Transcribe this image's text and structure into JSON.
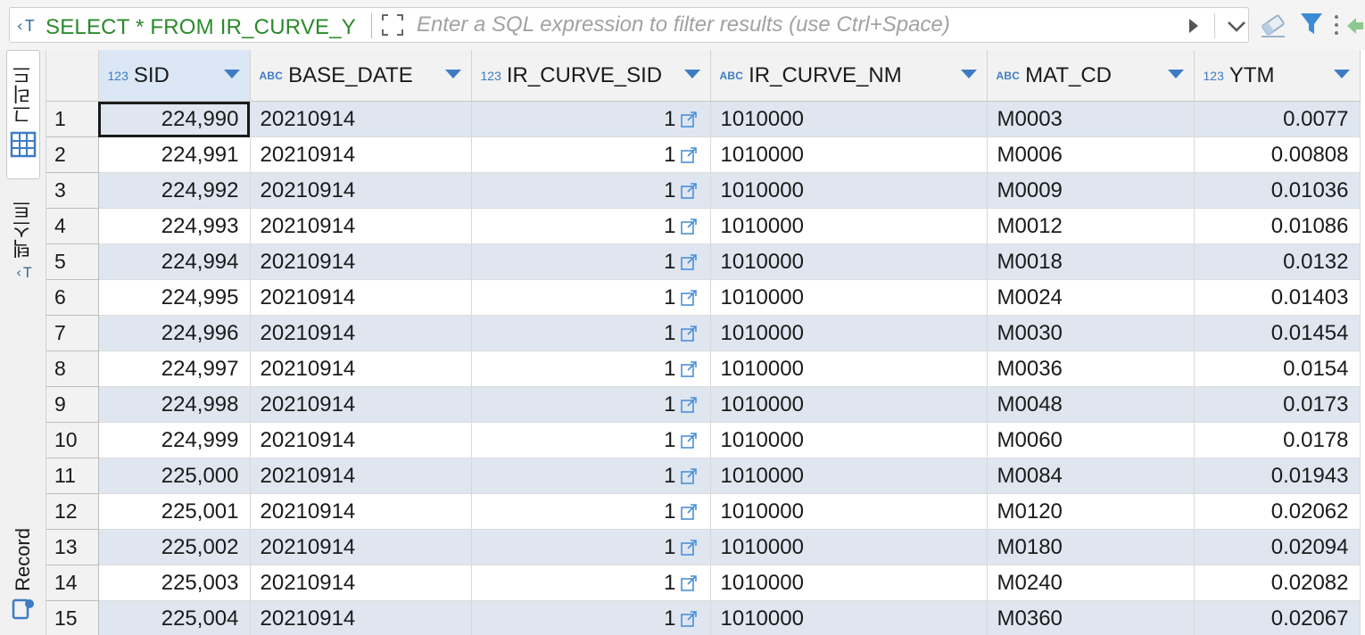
{
  "filter": {
    "query_text": "SELECT * FROM IR_CURVE_Y",
    "placeholder": "Enter a SQL expression to filter results (use Ctrl+Space)",
    "value": ""
  },
  "side_tabs": {
    "grid_label": "그리드",
    "text_label": "텍스트",
    "record_label": "Record"
  },
  "columns": [
    {
      "type": "123",
      "name": "SID"
    },
    {
      "type": "ABC",
      "name": "BASE_DATE"
    },
    {
      "type": "123",
      "name": "IR_CURVE_SID"
    },
    {
      "type": "ABC",
      "name": "IR_CURVE_NM"
    },
    {
      "type": "ABC",
      "name": "MAT_CD"
    },
    {
      "type": "123",
      "name": "YTM"
    }
  ],
  "rows": [
    {
      "n": "1",
      "sid": "224,990",
      "base_date": "20210914",
      "ir_curve_sid": "1",
      "ir_curve_nm": "1010000",
      "mat_cd": "M0003",
      "ytm": "0.0077"
    },
    {
      "n": "2",
      "sid": "224,991",
      "base_date": "20210914",
      "ir_curve_sid": "1",
      "ir_curve_nm": "1010000",
      "mat_cd": "M0006",
      "ytm": "0.00808"
    },
    {
      "n": "3",
      "sid": "224,992",
      "base_date": "20210914",
      "ir_curve_sid": "1",
      "ir_curve_nm": "1010000",
      "mat_cd": "M0009",
      "ytm": "0.01036"
    },
    {
      "n": "4",
      "sid": "224,993",
      "base_date": "20210914",
      "ir_curve_sid": "1",
      "ir_curve_nm": "1010000",
      "mat_cd": "M0012",
      "ytm": "0.01086"
    },
    {
      "n": "5",
      "sid": "224,994",
      "base_date": "20210914",
      "ir_curve_sid": "1",
      "ir_curve_nm": "1010000",
      "mat_cd": "M0018",
      "ytm": "0.0132"
    },
    {
      "n": "6",
      "sid": "224,995",
      "base_date": "20210914",
      "ir_curve_sid": "1",
      "ir_curve_nm": "1010000",
      "mat_cd": "M0024",
      "ytm": "0.01403"
    },
    {
      "n": "7",
      "sid": "224,996",
      "base_date": "20210914",
      "ir_curve_sid": "1",
      "ir_curve_nm": "1010000",
      "mat_cd": "M0030",
      "ytm": "0.01454"
    },
    {
      "n": "8",
      "sid": "224,997",
      "base_date": "20210914",
      "ir_curve_sid": "1",
      "ir_curve_nm": "1010000",
      "mat_cd": "M0036",
      "ytm": "0.0154"
    },
    {
      "n": "9",
      "sid": "224,998",
      "base_date": "20210914",
      "ir_curve_sid": "1",
      "ir_curve_nm": "1010000",
      "mat_cd": "M0048",
      "ytm": "0.0173"
    },
    {
      "n": "10",
      "sid": "224,999",
      "base_date": "20210914",
      "ir_curve_sid": "1",
      "ir_curve_nm": "1010000",
      "mat_cd": "M0060",
      "ytm": "0.0178"
    },
    {
      "n": "11",
      "sid": "225,000",
      "base_date": "20210914",
      "ir_curve_sid": "1",
      "ir_curve_nm": "1010000",
      "mat_cd": "M0084",
      "ytm": "0.01943"
    },
    {
      "n": "12",
      "sid": "225,001",
      "base_date": "20210914",
      "ir_curve_sid": "1",
      "ir_curve_nm": "1010000",
      "mat_cd": "M0120",
      "ytm": "0.02062"
    },
    {
      "n": "13",
      "sid": "225,002",
      "base_date": "20210914",
      "ir_curve_sid": "1",
      "ir_curve_nm": "1010000",
      "mat_cd": "M0180",
      "ytm": "0.02094"
    },
    {
      "n": "14",
      "sid": "225,003",
      "base_date": "20210914",
      "ir_curve_sid": "1",
      "ir_curve_nm": "1010000",
      "mat_cd": "M0240",
      "ytm": "0.02082"
    },
    {
      "n": "15",
      "sid": "225,004",
      "base_date": "20210914",
      "ir_curve_sid": "1",
      "ir_curve_nm": "1010000",
      "mat_cd": "M0360",
      "ytm": "0.02067"
    }
  ],
  "icons": {
    "query": "sql-query-icon",
    "expand": "expand-icon",
    "run": "play-icon",
    "history": "dropdown-icon",
    "clear": "eraser-icon",
    "filter": "funnel-icon",
    "more": "more-icon",
    "back": "back-arrow-icon",
    "grid": "grid-icon",
    "text": "text-icon",
    "record": "record-icon",
    "sort": "sort-arrow-icon",
    "link": "open-link-icon"
  },
  "colors": {
    "query_green": "#2a8a2a",
    "type_blue": "#3e7bc4",
    "stripe": "#dfe6f0",
    "selected_header": "#dbe7f5"
  }
}
